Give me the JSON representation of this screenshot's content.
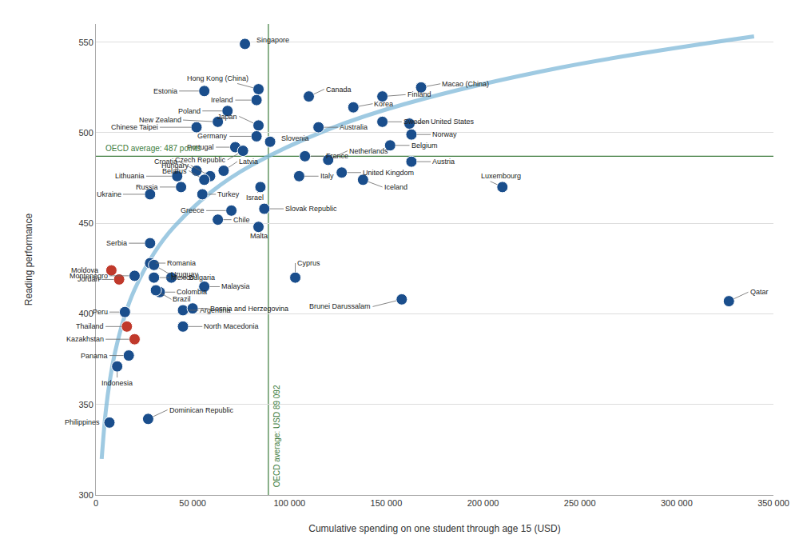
{
  "chart_data": {
    "type": "scatter",
    "xlabel": "Cumulative spending on one student through age 15 (USD)",
    "ylabel": "Reading performance",
    "xlim": [
      0,
      350000
    ],
    "ylim": [
      300,
      560
    ],
    "xticks": [
      0,
      {
        "value": 50000,
        "label": "50 000"
      },
      {
        "value": 100000,
        "label": "100 000"
      },
      {
        "value": 150000,
        "label": "150 000"
      },
      {
        "value": 200000,
        "label": "200 000"
      },
      {
        "value": 250000,
        "label": "250 000"
      },
      {
        "value": 300000,
        "label": "300 000"
      },
      {
        "value": 350000,
        "label": "350 000"
      }
    ],
    "yticks": [
      300,
      350,
      400,
      450,
      500,
      550
    ],
    "grid": "y",
    "reference_lines": [
      {
        "axis": "y",
        "value": 487,
        "text": "OECD average: 487 points",
        "color": "#3a7a3a"
      },
      {
        "axis": "x",
        "value": 89092,
        "text": "OECD average: USD 89 092",
        "color": "#3a7a3a"
      }
    ],
    "series": [
      {
        "type": "line",
        "color": "#7fb9d9",
        "line_style": "solid",
        "x": [
          3000,
          5000,
          7000,
          10000,
          15000,
          20000,
          30000,
          40000,
          60000,
          80000,
          120000,
          160000,
          240000,
          340000
        ],
        "values": [
          319.91,
          345.1,
          361.69,
          379.27,
          399.26,
          413.44,
          433.43,
          447.61,
          467.6,
          481.79,
          501.78,
          515.96,
          535.95,
          553.12
        ]
      },
      {
        "type": "scatter",
        "marker": "circle",
        "labels": [
          "Singapore",
          "Hong Kong (China)",
          "Finland",
          "Macao (China)",
          "Canada",
          "Estonia",
          "Ireland",
          "Korea",
          "Sweden",
          "Japan",
          "New Zealand",
          "Poland",
          "Germany",
          "Australia",
          "United States",
          "Chinese Taipei",
          "Norway",
          "Hungary",
          "Portugal",
          "Czech Republic",
          "Slovenia",
          "Belgium",
          "Lithuania",
          "Croatia",
          "France",
          "Austria",
          "Latvia",
          "Belarus",
          "Russia",
          "Turkey",
          "Ukraine",
          "Italy",
          "United Kingdom",
          "Israel",
          "Netherlands",
          "Greece",
          "Slovak Republic",
          "Iceland",
          "Luxembourg",
          "Chile",
          "Serbia",
          "Malta",
          "Montenegro",
          "Romania",
          "Uruguay",
          "Moldova",
          "Mexico",
          "Bulgaria",
          "Malaysia",
          "Jordan",
          "Colombia",
          "Brazil",
          "Cyprus",
          "Brunei Darussalam",
          "Peru",
          "Argentina",
          "Bosnia and Herzegovina",
          "Thailand",
          "Kazakhstan",
          "North Macedonia",
          "Panama",
          "Indonesia",
          "Philippines",
          "Dominican Republic",
          "Qatar"
        ],
        "x": [
          77000,
          84000,
          148000,
          168000,
          110000,
          56000,
          83000,
          133000,
          148000,
          84000,
          63000,
          68000,
          83000,
          115000,
          162000,
          52000,
          163000,
          59000,
          72000,
          76000,
          90000,
          152000,
          42000,
          52000,
          108000,
          163000,
          66000,
          56000,
          44000,
          55000,
          28000,
          105000,
          127000,
          85000,
          120000,
          70000,
          87000,
          138000,
          210000,
          63000,
          28000,
          84000,
          20000,
          28000,
          30000,
          8000,
          30000,
          39000,
          56000,
          12000,
          33000,
          31000,
          103000,
          158000,
          15000,
          45000,
          50000,
          16000,
          20000,
          45000,
          17000,
          11000,
          7000,
          27000,
          327000
        ],
        "values": [
          549,
          524,
          520,
          525,
          520,
          523,
          518,
          514,
          506,
          504,
          506,
          512,
          498,
          503,
          505,
          503,
          499,
          476,
          492,
          490,
          495,
          493,
          476,
          479,
          487,
          484,
          479,
          474,
          470,
          466,
          466,
          476,
          478,
          470,
          485,
          457,
          458,
          474,
          470,
          452,
          439,
          448,
          421,
          428,
          427,
          424,
          420,
          420,
          415,
          419,
          412,
          413,
          420,
          408,
          401,
          402,
          403,
          393,
          386,
          393,
          377,
          371,
          340,
          342,
          407
        ],
        "colors": [
          "#1a4e8c",
          "#1a4e8c",
          "#1a4e8c",
          "#1a4e8c",
          "#1a4e8c",
          "#1a4e8c",
          "#1a4e8c",
          "#1a4e8c",
          "#1a4e8c",
          "#1a4e8c",
          "#1a4e8c",
          "#1a4e8c",
          "#1a4e8c",
          "#1a4e8c",
          "#1a4e8c",
          "#1a4e8c",
          "#1a4e8c",
          "#1a4e8c",
          "#1a4e8c",
          "#1a4e8c",
          "#1a4e8c",
          "#1a4e8c",
          "#1a4e8c",
          "#1a4e8c",
          "#1a4e8c",
          "#1a4e8c",
          "#1a4e8c",
          "#1a4e8c",
          "#1a4e8c",
          "#1a4e8c",
          "#1a4e8c",
          "#1a4e8c",
          "#1a4e8c",
          "#1a4e8c",
          "#1a4e8c",
          "#1a4e8c",
          "#1a4e8c",
          "#1a4e8c",
          "#1a4e8c",
          "#1a4e8c",
          "#1a4e8c",
          "#1a4e8c",
          "#1a4e8c",
          "#1a4e8c",
          "#1a4e8c",
          "#c0392b",
          "#1a4e8c",
          "#1a4e8c",
          "#1a4e8c",
          "#c0392b",
          "#1a4e8c",
          "#1a4e8c",
          "#1a4e8c",
          "#1a4e8c",
          "#1a4e8c",
          "#1a4e8c",
          "#1a4e8c",
          "#c0392b",
          "#c0392b",
          "#1a4e8c",
          "#1a4e8c",
          "#1a4e8c",
          "#1a4e8c",
          "#1a4e8c",
          "#1a4e8c"
        ]
      }
    ]
  }
}
